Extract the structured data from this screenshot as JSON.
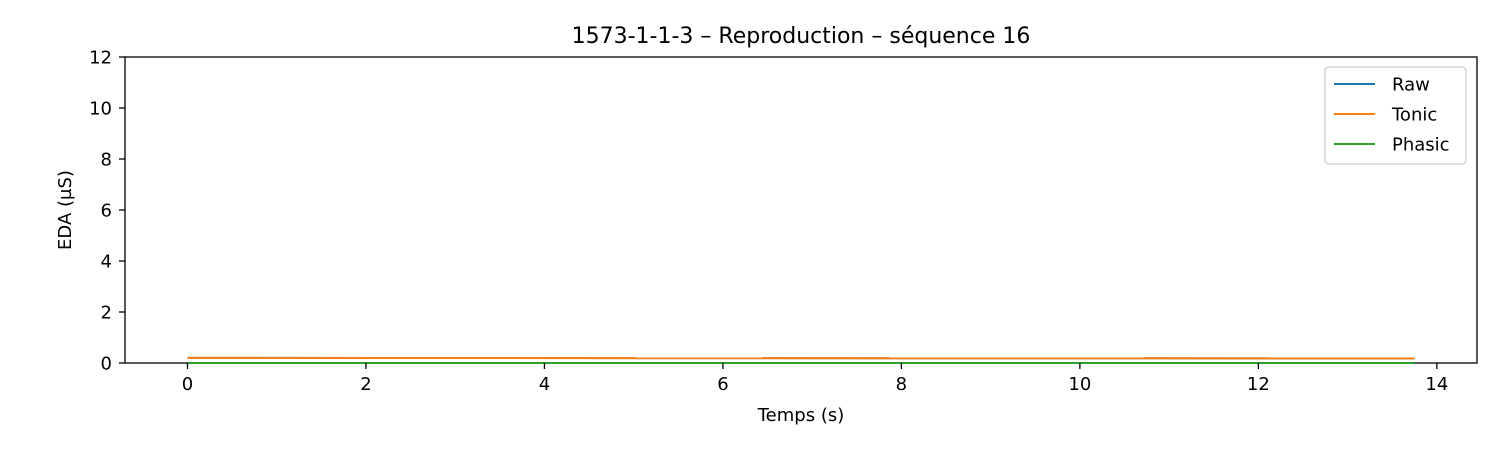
{
  "chart_data": {
    "type": "line",
    "title": "1573-1-1-3 – Reproduction – séquence 16",
    "xlabel": "Temps (s)",
    "ylabel": "EDA (µS)",
    "xlim": [
      -0.7,
      14.45
    ],
    "ylim": [
      0,
      12
    ],
    "xticks": [
      "0",
      "2",
      "4",
      "6",
      "8",
      "10",
      "12",
      "14"
    ],
    "xtick_values": [
      0,
      2,
      4,
      6,
      8,
      10,
      12,
      14
    ],
    "yticks": [
      "0",
      "2",
      "4",
      "6",
      "8",
      "10",
      "12"
    ],
    "ytick_values": [
      0,
      2,
      4,
      6,
      8,
      10,
      12
    ],
    "grid": false,
    "legend_position": "top-right",
    "series": [
      {
        "name": "Raw",
        "color": "#1f77b4",
        "x": [
          0,
          13.75
        ],
        "y": [
          0.2,
          0.18
        ]
      },
      {
        "name": "Tonic",
        "color": "#ff7f0e",
        "x": [
          0,
          13.75
        ],
        "y": [
          0.2,
          0.18
        ]
      },
      {
        "name": "Phasic",
        "color": "#2ca02c",
        "x": [
          0,
          13.75
        ],
        "y": [
          0.0,
          0.0
        ]
      }
    ]
  }
}
